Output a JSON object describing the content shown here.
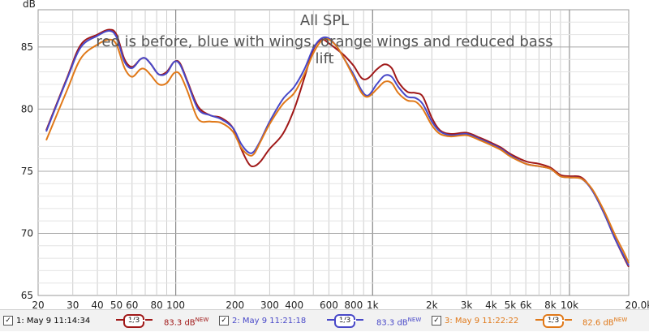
{
  "chart_data": {
    "type": "line",
    "title": "All SPL",
    "subtitle": "red is before, blue with wings, orange wings and reduced bass lift",
    "ylabel": "dB",
    "xscale": "log",
    "xlim": [
      20,
      20000
    ],
    "ylim": [
      65,
      88
    ],
    "grid": true,
    "x_ticks": [
      {
        "value": 20,
        "label": "20"
      },
      {
        "value": 30,
        "label": "30"
      },
      {
        "value": 40,
        "label": "40"
      },
      {
        "value": 50,
        "label": "50"
      },
      {
        "value": 60,
        "label": "60"
      },
      {
        "value": 80,
        "label": "80"
      },
      {
        "value": 100,
        "label": "100"
      },
      {
        "value": 200,
        "label": "200"
      },
      {
        "value": 300,
        "label": "300"
      },
      {
        "value": 400,
        "label": "400"
      },
      {
        "value": 600,
        "label": "600"
      },
      {
        "value": 800,
        "label": "800"
      },
      {
        "value": 1000,
        "label": "1k"
      },
      {
        "value": 2000,
        "label": "2k"
      },
      {
        "value": 3000,
        "label": "3k"
      },
      {
        "value": 4000,
        "label": "4k"
      },
      {
        "value": 5000,
        "label": "5k"
      },
      {
        "value": 6000,
        "label": "6k"
      },
      {
        "value": 8000,
        "label": "8k"
      },
      {
        "value": 10000,
        "label": "10k"
      },
      {
        "value": 20000,
        "label": "20.0kHz"
      }
    ],
    "y_ticks": [
      65,
      70,
      75,
      80,
      85
    ],
    "series": [
      {
        "name": "1: May 9 11:14:34",
        "color": "#a01818",
        "points": [
          [
            22,
            78.3
          ],
          [
            28,
            82.5
          ],
          [
            33,
            85.2
          ],
          [
            40,
            86.0
          ],
          [
            46,
            86.4
          ],
          [
            50,
            86.0
          ],
          [
            55,
            84.0
          ],
          [
            60,
            83.4
          ],
          [
            66,
            84.0
          ],
          [
            70,
            84.1
          ],
          [
            75,
            83.6
          ],
          [
            82,
            82.8
          ],
          [
            90,
            83.0
          ],
          [
            98,
            83.8
          ],
          [
            105,
            83.7
          ],
          [
            115,
            82.2
          ],
          [
            130,
            80.2
          ],
          [
            150,
            79.5
          ],
          [
            170,
            79.3
          ],
          [
            195,
            78.5
          ],
          [
            215,
            76.8
          ],
          [
            235,
            75.6
          ],
          [
            250,
            75.4
          ],
          [
            270,
            75.8
          ],
          [
            300,
            76.8
          ],
          [
            350,
            78.0
          ],
          [
            400,
            80.0
          ],
          [
            450,
            82.5
          ],
          [
            500,
            84.8
          ],
          [
            550,
            85.6
          ],
          [
            600,
            85.3
          ],
          [
            660,
            84.8
          ],
          [
            720,
            84.3
          ],
          [
            800,
            83.5
          ],
          [
            880,
            82.5
          ],
          [
            950,
            82.5
          ],
          [
            1050,
            83.2
          ],
          [
            1150,
            83.6
          ],
          [
            1250,
            83.3
          ],
          [
            1350,
            82.2
          ],
          [
            1500,
            81.4
          ],
          [
            1650,
            81.3
          ],
          [
            1800,
            81.0
          ],
          [
            2000,
            79.3
          ],
          [
            2200,
            78.3
          ],
          [
            2500,
            78.0
          ],
          [
            3000,
            78.1
          ],
          [
            3500,
            77.7
          ],
          [
            4000,
            77.3
          ],
          [
            4500,
            76.9
          ],
          [
            5000,
            76.4
          ],
          [
            6000,
            75.8
          ],
          [
            7000,
            75.6
          ],
          [
            8000,
            75.3
          ],
          [
            9000,
            74.7
          ],
          [
            10000,
            74.6
          ],
          [
            11500,
            74.5
          ],
          [
            13000,
            73.5
          ],
          [
            15000,
            71.6
          ],
          [
            17000,
            69.6
          ],
          [
            19000,
            68.0
          ],
          [
            20000,
            67.3
          ]
        ]
      },
      {
        "name": "2: May 9 11:21:18",
        "color": "#4848c8",
        "points": [
          [
            22,
            78.2
          ],
          [
            28,
            82.4
          ],
          [
            33,
            85.0
          ],
          [
            40,
            85.9
          ],
          [
            46,
            86.3
          ],
          [
            50,
            85.8
          ],
          [
            55,
            83.8
          ],
          [
            60,
            83.3
          ],
          [
            66,
            84.0
          ],
          [
            70,
            84.1
          ],
          [
            75,
            83.6
          ],
          [
            82,
            82.8
          ],
          [
            90,
            82.9
          ],
          [
            98,
            83.8
          ],
          [
            105,
            83.6
          ],
          [
            115,
            82.1
          ],
          [
            130,
            80.0
          ],
          [
            150,
            79.5
          ],
          [
            170,
            79.2
          ],
          [
            195,
            78.5
          ],
          [
            215,
            77.2
          ],
          [
            235,
            76.5
          ],
          [
            250,
            76.6
          ],
          [
            270,
            77.5
          ],
          [
            300,
            79.0
          ],
          [
            350,
            80.8
          ],
          [
            400,
            81.8
          ],
          [
            450,
            83.2
          ],
          [
            500,
            84.9
          ],
          [
            550,
            85.7
          ],
          [
            600,
            85.7
          ],
          [
            660,
            85.0
          ],
          [
            720,
            84.0
          ],
          [
            800,
            82.8
          ],
          [
            880,
            81.5
          ],
          [
            950,
            81.1
          ],
          [
            1050,
            82.0
          ],
          [
            1150,
            82.7
          ],
          [
            1250,
            82.6
          ],
          [
            1350,
            81.8
          ],
          [
            1500,
            81.0
          ],
          [
            1650,
            80.9
          ],
          [
            1800,
            80.4
          ],
          [
            2000,
            79.0
          ],
          [
            2200,
            78.2
          ],
          [
            2500,
            77.9
          ],
          [
            3000,
            78.0
          ],
          [
            3500,
            77.6
          ],
          [
            4000,
            77.2
          ],
          [
            4500,
            76.8
          ],
          [
            5000,
            76.3
          ],
          [
            6000,
            75.6
          ],
          [
            7000,
            75.4
          ],
          [
            8000,
            75.2
          ],
          [
            9000,
            74.6
          ],
          [
            10000,
            74.5
          ],
          [
            11500,
            74.4
          ],
          [
            13000,
            73.5
          ],
          [
            15000,
            71.6
          ],
          [
            17000,
            69.6
          ],
          [
            19000,
            68.1
          ],
          [
            20000,
            67.4
          ]
        ]
      },
      {
        "name": "3: May 9 11:22:22",
        "color": "#e07818",
        "points": [
          [
            22,
            77.5
          ],
          [
            28,
            81.5
          ],
          [
            33,
            84.1
          ],
          [
            40,
            85.2
          ],
          [
            46,
            85.6
          ],
          [
            50,
            85.2
          ],
          [
            55,
            83.3
          ],
          [
            60,
            82.6
          ],
          [
            66,
            83.2
          ],
          [
            70,
            83.2
          ],
          [
            75,
            82.7
          ],
          [
            82,
            82.0
          ],
          [
            90,
            82.1
          ],
          [
            98,
            82.9
          ],
          [
            105,
            82.8
          ],
          [
            115,
            81.4
          ],
          [
            130,
            79.2
          ],
          [
            150,
            79.0
          ],
          [
            170,
            78.9
          ],
          [
            195,
            78.2
          ],
          [
            215,
            76.9
          ],
          [
            235,
            76.3
          ],
          [
            250,
            76.4
          ],
          [
            270,
            77.4
          ],
          [
            300,
            78.8
          ],
          [
            350,
            80.4
          ],
          [
            400,
            81.3
          ],
          [
            450,
            82.8
          ],
          [
            500,
            84.5
          ],
          [
            550,
            85.5
          ],
          [
            600,
            85.6
          ],
          [
            660,
            85.0
          ],
          [
            720,
            84.0
          ],
          [
            800,
            82.6
          ],
          [
            880,
            81.3
          ],
          [
            950,
            81.0
          ],
          [
            1050,
            81.6
          ],
          [
            1150,
            82.2
          ],
          [
            1250,
            82.1
          ],
          [
            1350,
            81.3
          ],
          [
            1500,
            80.7
          ],
          [
            1650,
            80.6
          ],
          [
            1800,
            80.0
          ],
          [
            2000,
            78.7
          ],
          [
            2200,
            78.0
          ],
          [
            2500,
            77.8
          ],
          [
            3000,
            77.9
          ],
          [
            3500,
            77.5
          ],
          [
            4000,
            77.1
          ],
          [
            4500,
            76.7
          ],
          [
            5000,
            76.2
          ],
          [
            6000,
            75.6
          ],
          [
            7000,
            75.4
          ],
          [
            8000,
            75.2
          ],
          [
            9000,
            74.6
          ],
          [
            10000,
            74.5
          ],
          [
            11500,
            74.4
          ],
          [
            13000,
            73.6
          ],
          [
            15000,
            71.8
          ],
          [
            17000,
            69.9
          ],
          [
            19000,
            68.4
          ],
          [
            20000,
            67.6
          ]
        ]
      }
    ]
  },
  "legend": [
    {
      "name": "1: May 9 11:14:34",
      "smoothing": "1/3",
      "level": "83.3 dB",
      "badge": "NEW",
      "color": "#a01818",
      "checked": "✓"
    },
    {
      "name": "2: May 9 11:21:18",
      "smoothing": "1/3",
      "level": "83.3 dB",
      "badge": "NEW",
      "color": "#4848c8",
      "checked": "✓"
    },
    {
      "name": "3: May 9 11:22:22",
      "smoothing": "1/3",
      "level": "82.6 dB",
      "badge": "NEW",
      "color": "#e07818",
      "checked": "✓"
    }
  ]
}
